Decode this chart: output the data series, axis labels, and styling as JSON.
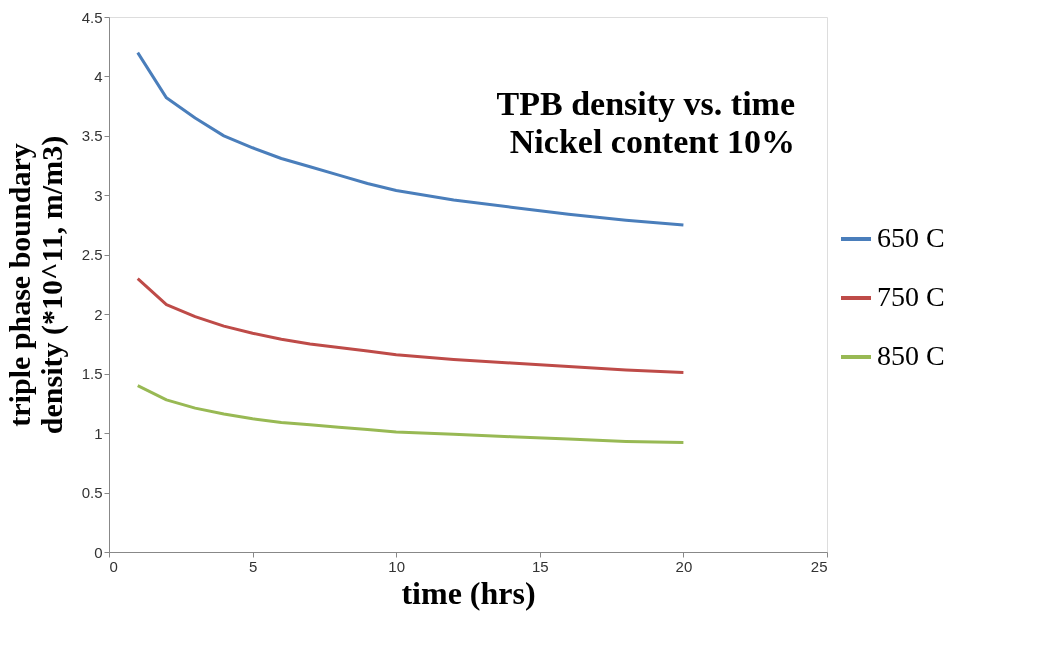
{
  "chart_data": {
    "type": "line",
    "title": [
      "TPB density vs. time",
      "Nickel content 10%"
    ],
    "xlabel": "time (hrs)",
    "ylabel": "triple phase boundary density (*10^11, m/m3)",
    "x": [
      1,
      2,
      3,
      4,
      5,
      6,
      7,
      8,
      9,
      10,
      12,
      14,
      16,
      18,
      20
    ],
    "series": [
      {
        "name": "650 C",
        "color": "#4a7ebb",
        "values": [
          4.2,
          3.82,
          3.65,
          3.5,
          3.4,
          3.31,
          3.24,
          3.17,
          3.1,
          3.04,
          2.96,
          2.9,
          2.84,
          2.79,
          2.75
        ]
      },
      {
        "name": "750 C",
        "color": "#be4b48",
        "values": [
          2.3,
          2.08,
          1.98,
          1.9,
          1.84,
          1.79,
          1.75,
          1.72,
          1.69,
          1.66,
          1.62,
          1.59,
          1.56,
          1.53,
          1.51
        ]
      },
      {
        "name": "850 C",
        "color": "#98b954",
        "values": [
          1.4,
          1.28,
          1.21,
          1.16,
          1.12,
          1.09,
          1.07,
          1.05,
          1.03,
          1.01,
          0.99,
          0.97,
          0.95,
          0.93,
          0.92
        ]
      }
    ],
    "xlim": [
      0,
      25
    ],
    "xticks": [
      0,
      5,
      10,
      15,
      20,
      25
    ],
    "ylim": [
      0,
      4.5
    ],
    "yticks": [
      0,
      0.5,
      1,
      1.5,
      2,
      2.5,
      3,
      3.5,
      4,
      4.5
    ],
    "grid": false,
    "legend": "right",
    "marker": "none",
    "line_style": "solid"
  }
}
